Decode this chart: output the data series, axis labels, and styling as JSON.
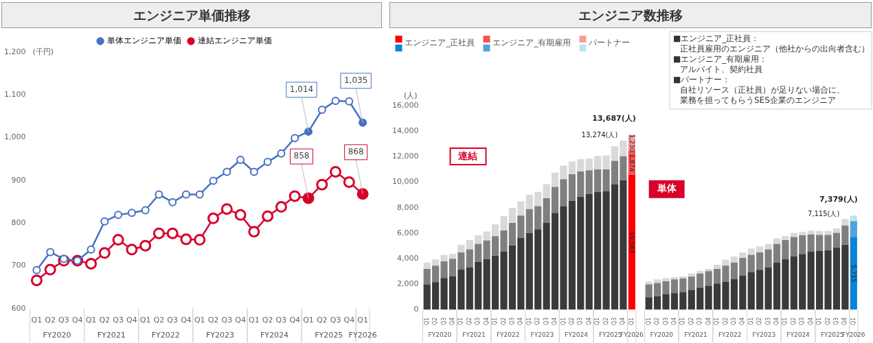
{
  "chart_data": [
    {
      "type": "line",
      "title": "エンジニア単価推移",
      "ylabel": "(千円)",
      "categories": [
        "Q1",
        "Q2",
        "Q3",
        "Q4",
        "Q1",
        "Q2",
        "Q3",
        "Q4",
        "Q1",
        "Q2",
        "Q3",
        "Q4",
        "Q1",
        "Q2",
        "Q3",
        "Q4",
        "Q1",
        "Q2",
        "Q3",
        "Q4",
        "Q1",
        "Q2",
        "Q3",
        "Q4",
        "Q1"
      ],
      "series": [
        {
          "name": "単体エンジニア単価",
          "color": "#4472c4",
          "values": [
            690,
            732,
            716,
            712,
            738,
            804,
            819,
            824,
            830,
            867,
            849,
            867,
            867,
            899,
            920,
            948,
            920,
            943,
            963,
            999,
            1014,
            1065,
            1086,
            1085,
            1035
          ],
          "value_labels": [
            null,
            null,
            null,
            null,
            null,
            null,
            null,
            null,
            null,
            null,
            null,
            null,
            null,
            null,
            null,
            null,
            null,
            null,
            null,
            null,
            "1,014",
            null,
            null,
            null,
            "1,035"
          ]
        },
        {
          "name": "連結エンジニア単価",
          "color": "#d7002b",
          "values": [
            666,
            691,
            712,
            712,
            705,
            730,
            761,
            738,
            747,
            776,
            776,
            762,
            761,
            811,
            833,
            819,
            780,
            816,
            838,
            863,
            858,
            890,
            920,
            896,
            868
          ],
          "value_labels": [
            null,
            null,
            null,
            null,
            null,
            null,
            null,
            null,
            null,
            null,
            null,
            null,
            null,
            null,
            null,
            null,
            null,
            null,
            null,
            null,
            "858",
            null,
            null,
            null,
            "868"
          ]
        }
      ],
      "ylim": [
        600,
        1200
      ],
      "yticks": [
        600,
        700,
        800,
        900,
        {
          "value": 1000,
          "label": "1,000"
        },
        {
          "value": 1100,
          "label": "1,100"
        },
        {
          "value": 1200,
          "label": "1,200"
        }
      ],
      "grid": false,
      "legend": "top",
      "marker": "circle",
      "annotations": [
        "FY2020",
        "FY2021",
        "FY2022",
        "FY2023",
        "FY2024",
        "FY2025",
        "FY2026"
      ]
    },
    {
      "type": "bar",
      "stacked": true,
      "title": "エンジニア数推移",
      "ylabel": "(人)",
      "categories": [
        "Q1",
        "Q2",
        "Q3",
        "Q4",
        "Q1",
        "Q2",
        "Q3",
        "Q4",
        "Q1",
        "Q2",
        "Q3",
        "Q4",
        "Q1",
        "Q2",
        "Q3",
        "Q4",
        "Q1",
        "Q2",
        "Q3",
        "Q4",
        "Q1",
        "Q2",
        "Q3",
        "Q4",
        "Q1",
        null,
        "Q1",
        "Q2",
        "Q3",
        "Q4",
        "Q1",
        "Q2",
        "Q3",
        "Q4",
        "Q1",
        "Q2",
        "Q3",
        "Q4",
        "Q1",
        "Q2",
        "Q3",
        "Q4",
        "Q1",
        "Q2",
        "Q3",
        "Q4",
        "Q1",
        "Q2",
        "Q3",
        "Q4",
        "Q1"
      ],
      "series": [
        {
          "name": "エンジニア_正社員",
          "colors": [
            "#3a3a3a",
            "#3a3a3a",
            "#3a3a3a",
            "#3a3a3a",
            "#3a3a3a",
            "#3a3a3a",
            "#3a3a3a",
            "#3a3a3a",
            "#3a3a3a",
            "#3a3a3a",
            "#3a3a3a",
            "#3a3a3a",
            "#3a3a3a",
            "#3a3a3a",
            "#3a3a3a",
            "#3a3a3a",
            "#3a3a3a",
            "#3a3a3a",
            "#3a3a3a",
            "#3a3a3a",
            "#3a3a3a",
            "#3a3a3a",
            "#3a3a3a",
            "#3a3a3a",
            "#ff0000",
            "#3a3a3a",
            "#3a3a3a",
            "#3a3a3a",
            "#3a3a3a",
            "#3a3a3a",
            "#3a3a3a",
            "#3a3a3a",
            "#3a3a3a",
            "#3a3a3a",
            "#3a3a3a",
            "#3a3a3a",
            "#3a3a3a",
            "#3a3a3a",
            "#3a3a3a",
            "#3a3a3a",
            "#3a3a3a",
            "#3a3a3a",
            "#3a3a3a",
            "#3a3a3a",
            "#3a3a3a",
            "#3a3a3a",
            "#3a3a3a",
            "#3a3a3a",
            "#3a3a3a",
            "#3a3a3a",
            "#0a84d8"
          ],
          "values": [
            2000,
            2170,
            2490,
            2640,
            3170,
            3340,
            3740,
            3960,
            4240,
            4570,
            5060,
            5630,
            6000,
            6310,
            6810,
            7600,
            8130,
            8530,
            8860,
            9070,
            9240,
            9310,
            9840,
            10160,
            10583,
            null,
            990,
            1070,
            1210,
            1310,
            1390,
            1560,
            1740,
            1890,
            2060,
            2210,
            2430,
            2700,
            2960,
            3140,
            3310,
            3700,
            3960,
            4200,
            4370,
            4570,
            4630,
            4670,
            4890,
            5100,
            5715
          ],
          "value_labels": [
            null,
            null,
            null,
            null,
            null,
            null,
            null,
            null,
            null,
            null,
            null,
            null,
            null,
            null,
            null,
            null,
            null,
            null,
            null,
            null,
            null,
            null,
            null,
            null,
            "10,583",
            null,
            null,
            null,
            null,
            null,
            null,
            null,
            null,
            null,
            null,
            null,
            null,
            null,
            null,
            null,
            null,
            null,
            null,
            null,
            null,
            null,
            null,
            null,
            null,
            null,
            "5,715"
          ]
        },
        {
          "name": "エンジニア_有期雇用",
          "colors": [
            "#7f7f7f",
            "#7f7f7f",
            "#7f7f7f",
            "#7f7f7f",
            "#7f7f7f",
            "#7f7f7f",
            "#7f7f7f",
            "#7f7f7f",
            "#7f7f7f",
            "#7f7f7f",
            "#7f7f7f",
            "#7f7f7f",
            "#7f7f7f",
            "#7f7f7f",
            "#7f7f7f",
            "#7f7f7f",
            "#7f7f7f",
            "#7f7f7f",
            "#7f7f7f",
            "#7f7f7f",
            "#7f7f7f",
            "#7f7f7f",
            "#7f7f7f",
            "#7f7f7f",
            "#ff5050",
            "#7f7f7f",
            "#7f7f7f",
            "#7f7f7f",
            "#7f7f7f",
            "#7f7f7f",
            "#7f7f7f",
            "#7f7f7f",
            "#7f7f7f",
            "#7f7f7f",
            "#7f7f7f",
            "#7f7f7f",
            "#7f7f7f",
            "#7f7f7f",
            "#7f7f7f",
            "#7f7f7f",
            "#7f7f7f",
            "#7f7f7f",
            "#7f7f7f",
            "#7f7f7f",
            "#7f7f7f",
            "#7f7f7f",
            "#7f7f7f",
            "#7f7f7f",
            "#7f7f7f",
            "#7f7f7f",
            "#4ea5d9"
          ],
          "values": [
            1210,
            1290,
            1300,
            1360,
            1330,
            1400,
            1430,
            1470,
            1530,
            1640,
            1750,
            1760,
            1890,
            1820,
            1930,
            2030,
            2110,
            2100,
            1980,
            1860,
            1760,
            1690,
            1830,
            1880,
            1874,
            null,
            1010,
            1030,
            1030,
            1080,
            1070,
            1040,
            1100,
            1140,
            1150,
            1250,
            1270,
            1360,
            1350,
            1360,
            1430,
            1470,
            1500,
            1510,
            1470,
            1340,
            1230,
            1190,
            1140,
            1500,
            1240
          ],
          "value_labels": [
            null,
            null,
            null,
            null,
            null,
            null,
            null,
            null,
            null,
            null,
            null,
            null,
            null,
            null,
            null,
            null,
            null,
            null,
            null,
            null,
            null,
            null,
            null,
            null,
            "1,874",
            null,
            null,
            null,
            null,
            null,
            null,
            null,
            null,
            null,
            null,
            null,
            null,
            null,
            null,
            null,
            null,
            null,
            null,
            null,
            null,
            null,
            null,
            null,
            null,
            null,
            null
          ]
        },
        {
          "name": "パートナー",
          "colors": [
            "#d9d9d9",
            "#d9d9d9",
            "#d9d9d9",
            "#d9d9d9",
            "#d9d9d9",
            "#d9d9d9",
            "#d9d9d9",
            "#d9d9d9",
            "#d9d9d9",
            "#d9d9d9",
            "#d9d9d9",
            "#d9d9d9",
            "#d9d9d9",
            "#d9d9d9",
            "#d9d9d9",
            "#d9d9d9",
            "#d9d9d9",
            "#d9d9d9",
            "#d9d9d9",
            "#d9d9d9",
            "#d9d9d9",
            "#d9d9d9",
            "#d9d9d9",
            "#d9d9d9",
            "#ff9999",
            "#d9d9d9",
            "#d9d9d9",
            "#d9d9d9",
            "#d9d9d9",
            "#d9d9d9",
            "#d9d9d9",
            "#d9d9d9",
            "#d9d9d9",
            "#d9d9d9",
            "#d9d9d9",
            "#d9d9d9",
            "#d9d9d9",
            "#d9d9d9",
            "#d9d9d9",
            "#d9d9d9",
            "#d9d9d9",
            "#d9d9d9",
            "#d9d9d9",
            "#d9d9d9",
            "#d9d9d9",
            "#d9d9d9",
            "#d9d9d9",
            "#d9d9d9",
            "#d9d9d9",
            "#d9d9d9",
            "#bfe2f2"
          ],
          "values": [
            490,
            500,
            520,
            390,
            600,
            720,
            670,
            710,
            930,
            1130,
            1180,
            1110,
            1140,
            1110,
            1100,
            1110,
            1050,
            1000,
            970,
            930,
            1060,
            1100,
            1140,
            1234,
            1230,
            null,
            210,
            290,
            250,
            180,
            170,
            260,
            220,
            180,
            320,
            470,
            470,
            440,
            500,
            460,
            430,
            430,
            310,
            320,
            260,
            290,
            310,
            310,
            360,
            515,
            424
          ],
          "value_labels": [
            null,
            null,
            null,
            null,
            null,
            null,
            null,
            null,
            null,
            null,
            null,
            null,
            null,
            null,
            null,
            null,
            null,
            null,
            null,
            null,
            null,
            null,
            null,
            null,
            "1,230",
            null,
            null,
            null,
            null,
            null,
            null,
            null,
            null,
            null,
            null,
            null,
            null,
            null,
            null,
            null,
            null,
            null,
            null,
            null,
            null,
            null,
            null,
            null,
            null,
            null,
            null
          ]
        }
      ],
      "totals": [
        null,
        null,
        null,
        null,
        null,
        null,
        null,
        null,
        null,
        null,
        null,
        null,
        null,
        null,
        null,
        null,
        null,
        null,
        null,
        null,
        null,
        null,
        null,
        "13,274(人)",
        "13,687(人)",
        null,
        null,
        null,
        null,
        null,
        null,
        null,
        null,
        null,
        null,
        null,
        null,
        null,
        null,
        null,
        null,
        null,
        null,
        null,
        null,
        null,
        null,
        null,
        null,
        "7,115(人)",
        "7,379(人)"
      ],
      "ylim": [
        0,
        16000
      ],
      "yticks": [
        0,
        {
          "value": 2000,
          "label": "2,000"
        },
        {
          "value": 4000,
          "label": "4,000"
        },
        {
          "value": 6000,
          "label": "6,000"
        },
        {
          "value": 8000,
          "label": "8,000"
        },
        {
          "value": 10000,
          "label": "10,000"
        },
        {
          "value": 12000,
          "label": "12,000"
        },
        {
          "value": 14000,
          "label": "14,000"
        },
        {
          "value": 16000,
          "label": "16,000"
        }
      ],
      "grid": false,
      "legend": "top left",
      "annotations": [
        "FY2020",
        "FY2021",
        "FY2022",
        "FY2023",
        "FY2024",
        "FY2025",
        "FY2026",
        "FY2020",
        "FY2021",
        "FY2022",
        "FY2023",
        "FY2024",
        "FY2025",
        "FY2026",
        "連結",
        "単体",
        "■エンジニア_正社員：",
        "正社員雇用のエンジニア（他社からの出向者含む）",
        "■エンジニア_有期雇用：",
        "アルバイト、契約社員",
        "■パートナー：",
        "自社リソース（正社員）が足りない場合に、",
        "業務を担ってもらうSES企業のエンジニア"
      ]
    }
  ]
}
